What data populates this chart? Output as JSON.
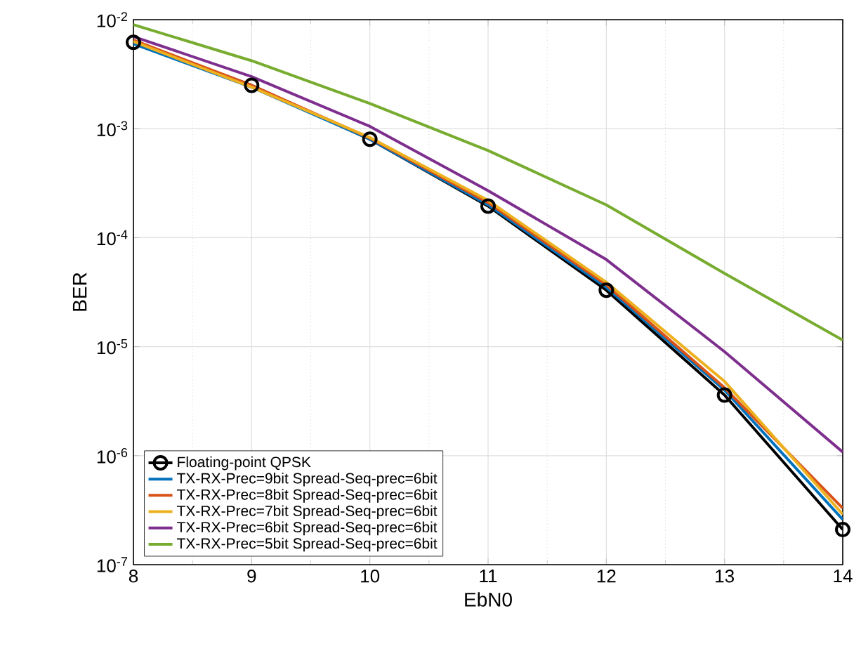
{
  "chart_data": {
    "type": "line",
    "xlabel": "EbN0",
    "ylabel": "BER",
    "x": [
      8,
      9,
      10,
      11,
      12,
      13,
      14
    ],
    "xlim": [
      8,
      14
    ],
    "xticks": [
      8,
      9,
      10,
      11,
      12,
      13,
      14
    ],
    "ylim": [
      1e-07,
      0.01
    ],
    "log": "y",
    "yticks": [
      {
        "value": 1e-07,
        "label": "10$^{-7}$"
      },
      {
        "value": 1e-06,
        "label": "10$^{-6}$"
      },
      {
        "value": 1e-05,
        "label": "10$^{-5}$"
      },
      {
        "value": 0.0001,
        "label": "10$^{-4}$"
      },
      {
        "value": 0.001,
        "label": "10$^{-3}$"
      },
      {
        "value": 0.01,
        "label": "10$^{-2}$"
      }
    ],
    "grid": true,
    "legend": "bottom left",
    "line_style": "solid",
    "series": [
      {
        "name": "Floating-point QPSK",
        "color": "#000000",
        "marker": "circle",
        "values": [
          0.0062,
          0.0025,
          0.0008,
          0.000195,
          3.3e-05,
          3.6e-06,
          2.1e-07
        ]
      },
      {
        "name": "TX-RX-Prec=9bit Spread-Seq-prec=6bit",
        "color": "#0072bd",
        "marker": "none",
        "values": [
          0.006,
          0.0024,
          0.0008,
          0.0002,
          3.5e-05,
          4e-06,
          2.6e-07
        ]
      },
      {
        "name": "TX-RX-Prec=8bit Spread-Seq-prec=6bit",
        "color": "#d95319",
        "marker": "none",
        "values": [
          0.0065,
          0.0025,
          0.00082,
          0.00021,
          3.7e-05,
          4.2e-06,
          3.3e-07
        ]
      },
      {
        "name": "TX-RX-Prec=7bit Spread-Seq-prec=6bit",
        "color": "#edb120",
        "marker": "none",
        "values": [
          0.0063,
          0.0024,
          0.00083,
          0.00022,
          3.9e-05,
          4.8e-06,
          2.9e-07
        ]
      },
      {
        "name": "TX-RX-Prec=6bit Spread-Seq-prec=6bit",
        "color": "#7e2f8e",
        "marker": "none",
        "values": [
          0.007,
          0.003,
          0.00105,
          0.00027,
          6.3e-05,
          9e-06,
          1.08e-06
        ]
      },
      {
        "name": "TX-RX-Prec=5bit Spread-Seq-prec=6bit",
        "color": "#77ac30",
        "marker": "none",
        "values": [
          0.009,
          0.0042,
          0.0017,
          0.00063,
          0.0002,
          4.7e-05,
          1.15e-05
        ]
      }
    ]
  }
}
